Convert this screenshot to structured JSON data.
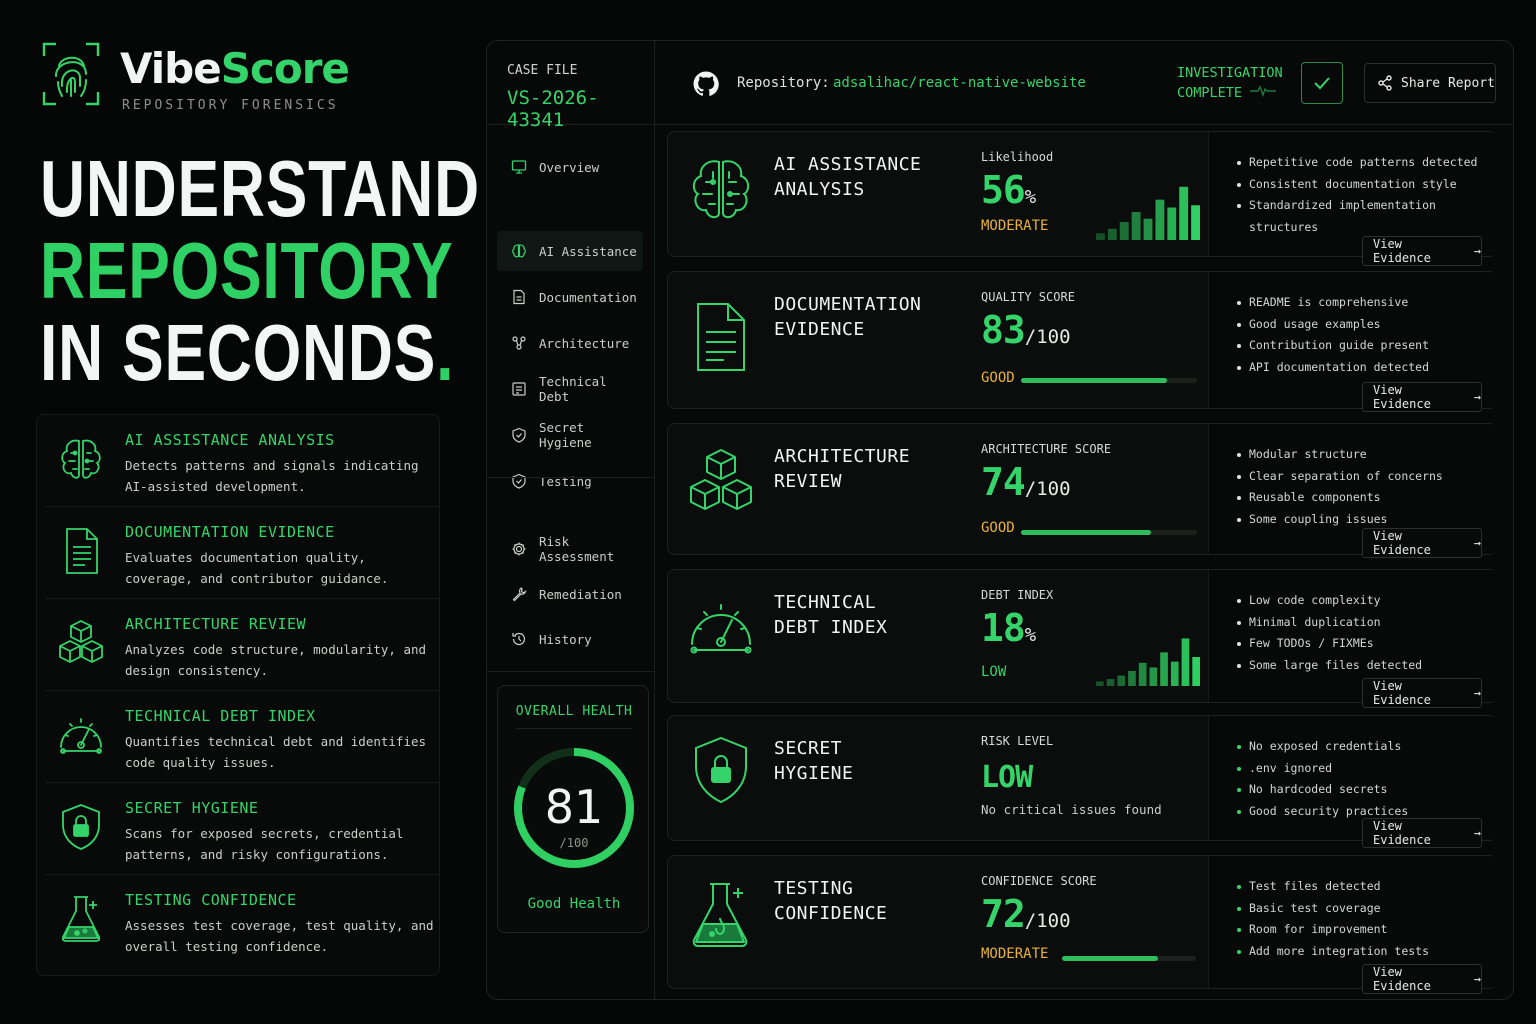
{
  "brand": {
    "name_part1": "Vibe",
    "name_part2": "Score",
    "tagline": "REPOSITORY FORENSICS"
  },
  "hero": {
    "line1": "UNDERSTAND A",
    "line2": "REPOSITORY",
    "line3": "IN SECONDS",
    "dot": "."
  },
  "features": [
    {
      "title": "AI ASSISTANCE ANALYSIS",
      "desc": "Detects patterns and signals indicating AI-assisted development.",
      "icon": "brain-icon"
    },
    {
      "title": "DOCUMENTATION EVIDENCE",
      "desc": "Evaluates documentation quality, coverage, and contributor guidance.",
      "icon": "document-icon"
    },
    {
      "title": "ARCHITECTURE REVIEW",
      "desc": "Analyzes code structure, modularity, and design consistency.",
      "icon": "cubes-icon"
    },
    {
      "title": "TECHNICAL DEBT INDEX",
      "desc": "Quantifies technical debt and identifies code quality issues.",
      "icon": "gauge-icon"
    },
    {
      "title": "SECRET HYGIENE",
      "desc": "Scans for exposed secrets, credential patterns, and risky configurations.",
      "icon": "shield-lock-icon"
    },
    {
      "title": "TESTING CONFIDENCE",
      "desc": "Assesses test coverage, test quality, and overall testing confidence.",
      "icon": "flask-icon"
    }
  ],
  "topbar": {
    "case_label": "CASE FILE",
    "case_id": "VS-2026-43341",
    "repo_label": "Repository:",
    "repo_value": "adsalihac/react-native-website",
    "status_line1": "INVESTIGATION",
    "status_line2": "COMPLETE",
    "share_label": "Share Report"
  },
  "nav": [
    {
      "label": "Overview",
      "icon": "monitor-icon"
    },
    {
      "label": "AI Assistance",
      "icon": "brain-icon",
      "active": true
    },
    {
      "label": "Documentation",
      "icon": "document-icon"
    },
    {
      "label": "Architecture",
      "icon": "nodes-icon"
    },
    {
      "label": "Technical Debt",
      "icon": "ledger-icon"
    },
    {
      "label": "Secret Hygiene",
      "icon": "shield-icon"
    },
    {
      "label": "Testing",
      "icon": "shield-check-icon"
    },
    {
      "label": "Risk Assessment",
      "icon": "gear-icon"
    },
    {
      "label": "Remediation",
      "icon": "wrench-icon"
    },
    {
      "label": "History",
      "icon": "history-icon"
    }
  ],
  "health": {
    "title": "OVERALL HEALTH",
    "score": "81",
    "denominator": "/100",
    "label": "Good Health",
    "fraction": 0.81
  },
  "cards": [
    {
      "title_l1": "AI ASSISTANCE",
      "title_l2": "ANALYSIS",
      "metric_label": "Likelihood",
      "value": "56",
      "unit": "%",
      "status": "MODERATE",
      "bullets": [
        "Repetitive code patterns detected",
        "Consistent documentation style",
        "Standardized implementation structures"
      ],
      "evidence": "View Evidence",
      "spark": [
        0.12,
        0.2,
        0.32,
        0.5,
        0.38,
        0.72,
        0.58,
        0.95,
        0.62
      ]
    },
    {
      "title_l1": "DOCUMENTATION",
      "title_l2": "EVIDENCE",
      "metric_label": "QUALITY SCORE",
      "value": "83",
      "unit": "/100",
      "status": "GOOD",
      "progress": 0.83,
      "bullets": [
        "README is comprehensive",
        "Good usage examples",
        "Contribution guide present",
        "API documentation detected"
      ],
      "evidence": "View Evidence"
    },
    {
      "title_l1": "ARCHITECTURE",
      "title_l2": "REVIEW",
      "metric_label": "ARCHITECTURE SCORE",
      "value": "74",
      "unit": "/100",
      "status": "GOOD",
      "progress": 0.74,
      "bullets": [
        "Modular structure",
        "Clear separation of concerns",
        "Reusable components",
        "Some coupling issues"
      ],
      "evidence": "View Evidence"
    },
    {
      "title_l1": "TECHNICAL",
      "title_l2": "DEBT INDEX",
      "metric_label": "DEBT INDEX",
      "value": "18",
      "unit": "%",
      "status": "LOW",
      "bullets": [
        "Low code complexity",
        "Minimal duplication",
        "Few TODOs / FIXMEs",
        "Some large files detected"
      ],
      "evidence": "View Evidence",
      "spark": [
        0.08,
        0.12,
        0.18,
        0.26,
        0.4,
        0.32,
        0.58,
        0.42,
        0.82,
        0.5
      ]
    },
    {
      "title_l1": "SECRET",
      "title_l2": "HYGIENE",
      "metric_label": "RISK LEVEL",
      "value": "LOW",
      "note": "No critical issues found",
      "bullets": [
        "No exposed credentials",
        ".env ignored",
        "No hardcoded secrets",
        "Good security practices"
      ],
      "evidence": "View Evidence"
    },
    {
      "title_l1": "TESTING",
      "title_l2": "CONFIDENCE",
      "metric_label": "CONFIDENCE SCORE",
      "value": "72",
      "unit": "/100",
      "status": "MODERATE",
      "progress": 0.72,
      "bullets": [
        "Test files detected",
        "Basic test coverage",
        "Room for improvement",
        "Add more integration tests"
      ],
      "evidence": "View Evidence"
    }
  ],
  "colors": {
    "accent": "#35d46a",
    "amber": "#e8b23a",
    "background": "#050706"
  }
}
